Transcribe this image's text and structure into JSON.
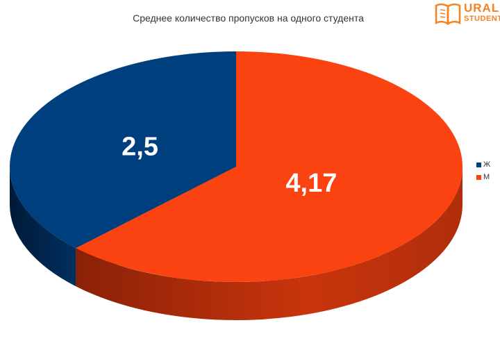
{
  "chart_data": {
    "type": "pie",
    "title": "Среднее количество пропусков на одного студента",
    "slices": [
      {
        "name": "Ж",
        "value": 2.5,
        "label": "2,5",
        "color": "#003f7d",
        "side_color": "#00244a"
      },
      {
        "name": "М",
        "value": 4.17,
        "label": "4,17",
        "color": "#fb4312",
        "side_color": "#a32a0a"
      }
    ],
    "legend_position": "right",
    "three_d": true
  },
  "logo": {
    "line1": "URAL",
    "line2": "STUDENT",
    "icon": "open-book-icon",
    "color": "#f5821f"
  }
}
